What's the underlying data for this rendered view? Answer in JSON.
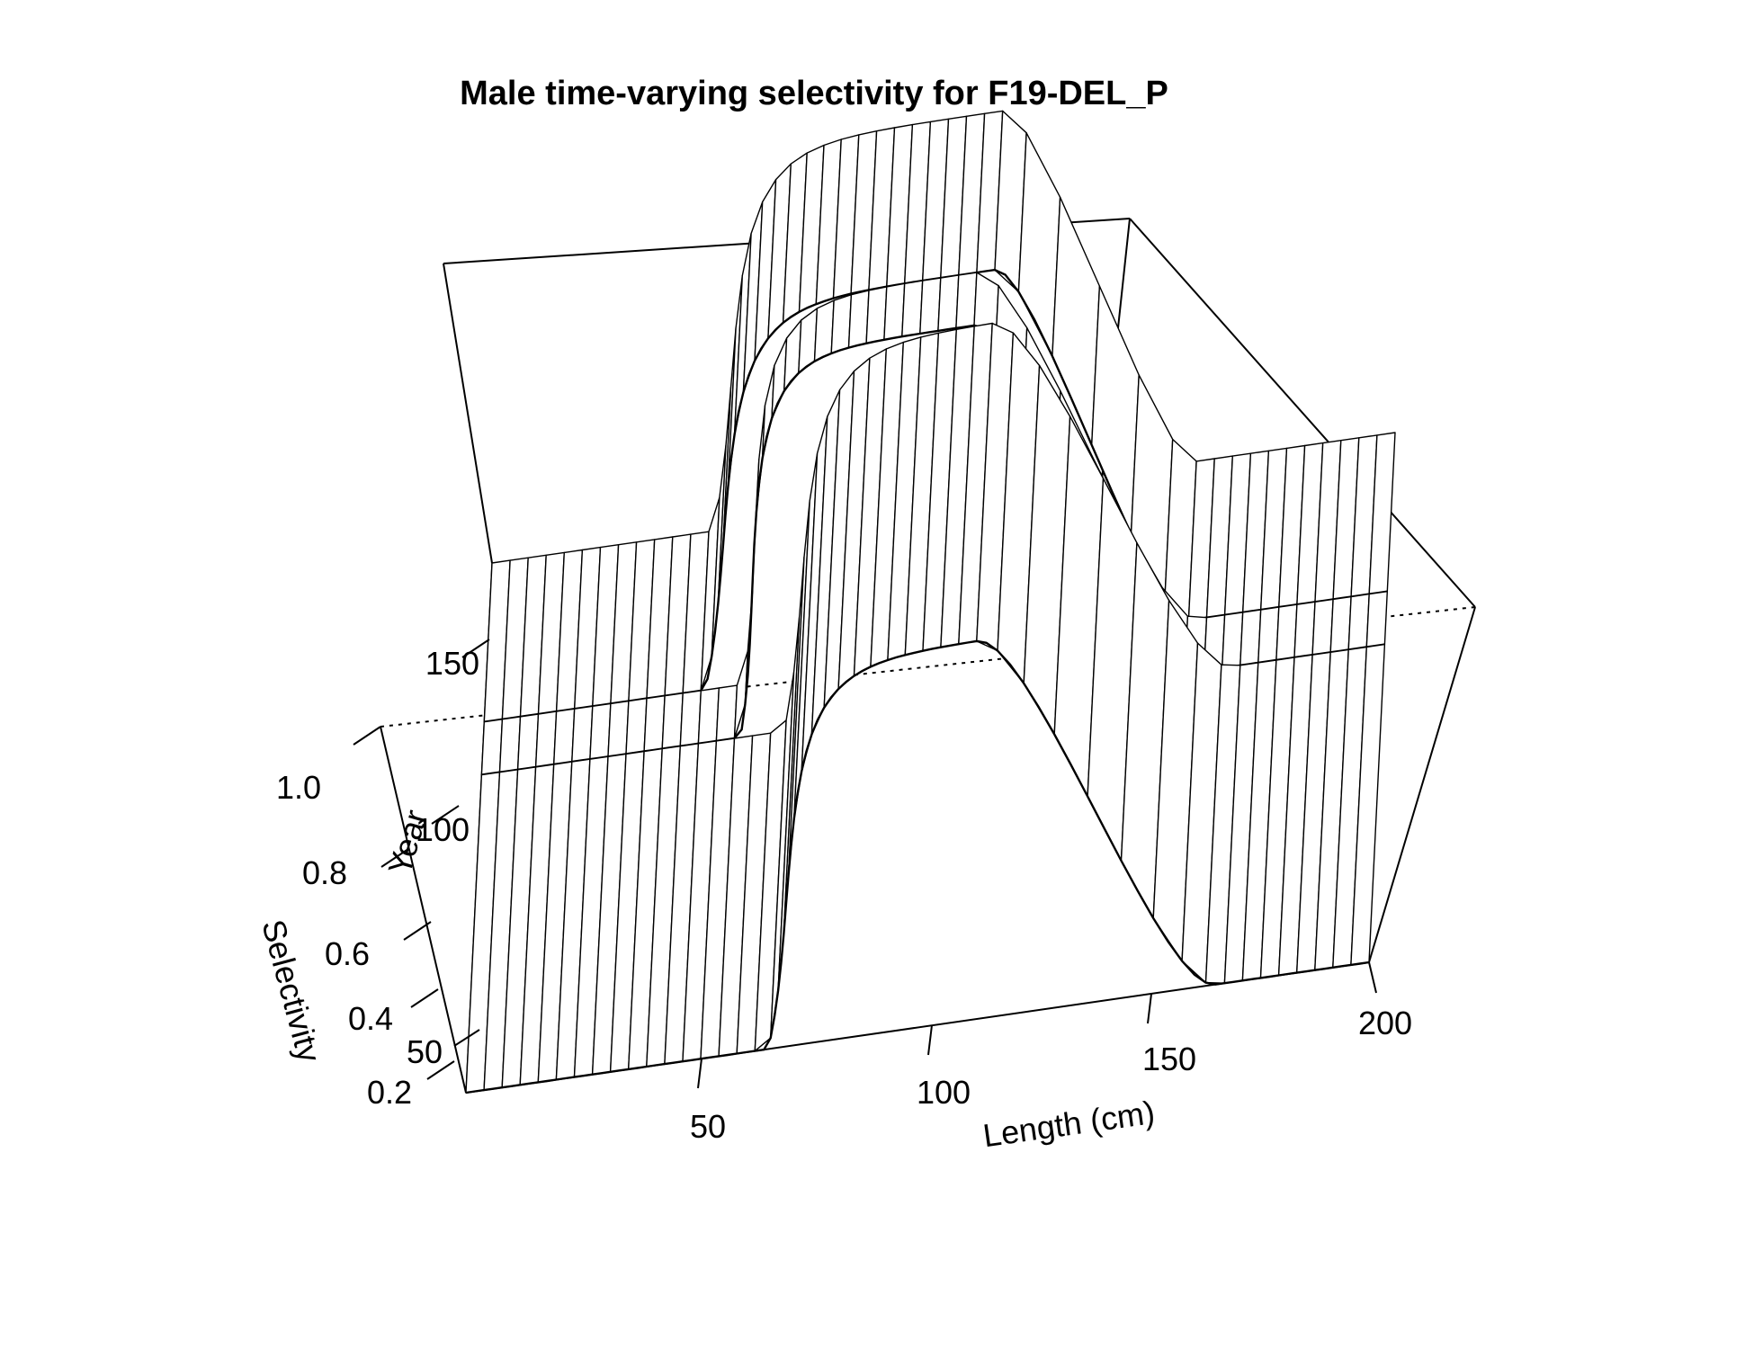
{
  "chart_data": {
    "type": "surface3d",
    "title": "Male time-varying selectivity for F19-DEL_P",
    "xlabel": "Length (cm)",
    "ylabel": "Year",
    "zlabel": "Selectivity",
    "x_ticks": [
      "50",
      "100",
      "150",
      "200"
    ],
    "y_ticks": [
      "50",
      "100",
      "150"
    ],
    "z_ticks": [
      "0.2",
      "0.4",
      "0.6",
      "0.8",
      "1.0"
    ],
    "xlim": [
      0,
      200
    ],
    "ylim": [
      0,
      200
    ],
    "zlim": [
      0.2,
      1.0
    ],
    "length_bins": [
      2,
      6,
      10,
      14,
      18,
      22,
      26,
      30,
      34,
      38,
      42,
      46,
      50,
      54,
      58,
      62,
      66,
      70,
      74,
      78,
      82,
      86,
      90,
      94,
      98,
      102,
      106,
      110,
      114,
      118,
      122,
      126,
      130,
      134,
      138,
      142,
      146,
      150,
      154,
      158,
      162,
      166,
      170,
      174,
      178,
      182,
      186,
      190,
      194,
      198
    ],
    "periods": [
      {
        "years": [
          0,
          120
        ],
        "ascend_mid": 78,
        "ascend_width": 8,
        "plateau_end": 132,
        "descend_end": 166,
        "end_sel": 0.2
      },
      {
        "years": [
          120,
          140
        ],
        "ascend_mid": 67,
        "ascend_width": 7,
        "plateau_end": 128,
        "descend_end": 158,
        "end_sel": 0.2
      },
      {
        "years": [
          140,
          200
        ],
        "ascend_mid": 60,
        "ascend_width": 8,
        "plateau_end": 132,
        "descend_end": 156,
        "end_sel": 0.2
      }
    ]
  }
}
